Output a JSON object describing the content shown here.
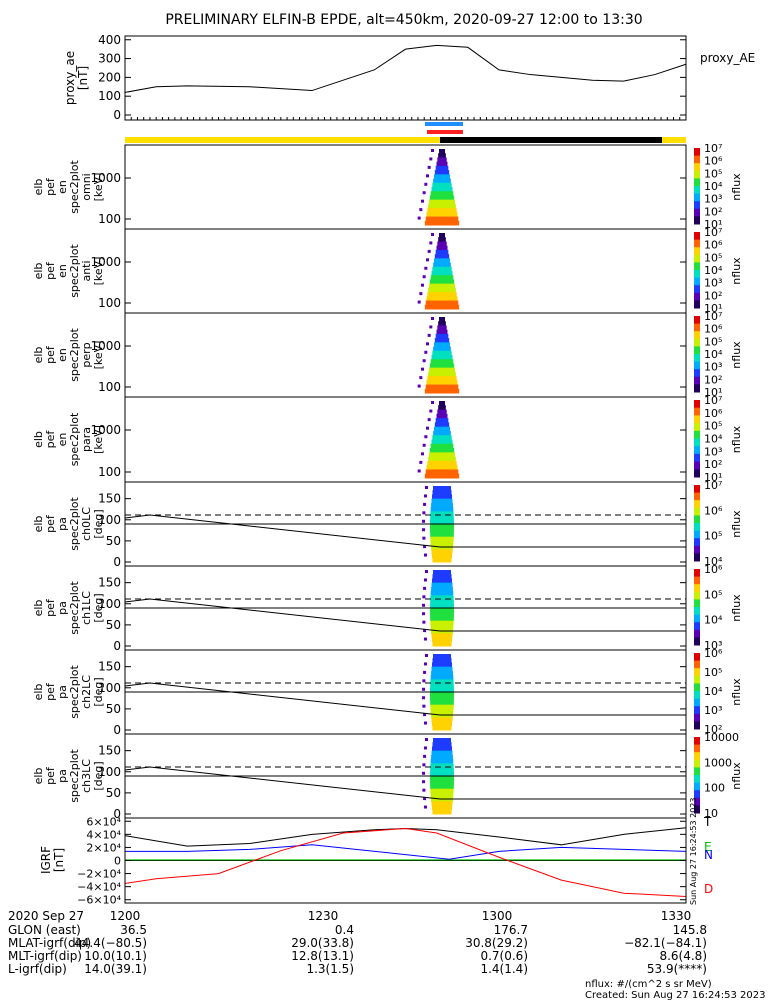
{
  "title": "PRELIMINARY ELFIN-B EPDE, alt=450km, 2020-09-27 12:00 to 13:30",
  "chart_data": [
    {
      "type": "line",
      "name": "proxy_ae",
      "ylabel_lines": [
        "proxy_ae",
        "[nT]"
      ],
      "legend": "proxy_AE",
      "ylim": [
        0,
        420
      ],
      "yticks": [
        "0",
        "100",
        "200",
        "300",
        "400"
      ],
      "x": [
        0,
        5,
        10,
        20,
        30,
        40,
        45,
        50,
        55,
        60,
        65,
        70,
        75,
        80,
        85,
        90
      ],
      "values": [
        120,
        150,
        155,
        150,
        130,
        240,
        350,
        370,
        360,
        240,
        215,
        200,
        185,
        180,
        215,
        270
      ]
    },
    {
      "type": "heatmap",
      "name": "elb_pef_en_spec2plot_omni",
      "ylabel_lines": [
        "elb",
        "pef",
        "en",
        "spec2plot",
        "omni",
        "[keV]"
      ],
      "yticks": [
        "100",
        "1000"
      ],
      "cbar_label": "nflux",
      "cbar_ticks": [
        "10¹",
        "10²",
        "10³",
        "10⁴",
        "10⁵",
        "10⁶",
        "10⁷"
      ]
    },
    {
      "type": "heatmap",
      "name": "elb_pef_en_spec2plot_anti",
      "ylabel_lines": [
        "elb",
        "pef",
        "en",
        "spec2plot",
        "anti",
        "[keV]"
      ],
      "yticks": [
        "100",
        "1000"
      ],
      "cbar_label": "nflux",
      "cbar_ticks": [
        "10¹",
        "10²",
        "10³",
        "10⁴",
        "10⁵",
        "10⁶",
        "10⁷"
      ]
    },
    {
      "type": "heatmap",
      "name": "elb_pef_en_spec2plot_perp",
      "ylabel_lines": [
        "elb",
        "pef",
        "en",
        "spec2plot",
        "perp",
        "[keV]"
      ],
      "yticks": [
        "100",
        "1000"
      ],
      "cbar_label": "nflux",
      "cbar_ticks": [
        "10¹",
        "10²",
        "10³",
        "10⁴",
        "10⁵",
        "10⁶",
        "10⁷"
      ]
    },
    {
      "type": "heatmap",
      "name": "elb_pef_en_spec2plot_para",
      "ylabel_lines": [
        "elb",
        "pef",
        "en",
        "spec2plot",
        "para",
        "[keV]"
      ],
      "yticks": [
        "100",
        "1000"
      ],
      "cbar_label": "nflux",
      "cbar_ticks": [
        "10¹",
        "10²",
        "10³",
        "10⁴",
        "10⁵",
        "10⁶",
        "10⁷"
      ]
    },
    {
      "type": "heatmap",
      "name": "elb_pef_pa_spec2plot_ch0LC",
      "ylabel_lines": [
        "elb",
        "pef",
        "pa",
        "spec2plot",
        "ch0LC",
        "[deg]"
      ],
      "yticks": [
        "0",
        "50",
        "100",
        "150"
      ],
      "cbar_label": "nflux",
      "cbar_ticks": [
        "10⁴",
        "10⁵",
        "10⁶",
        "10⁷"
      ]
    },
    {
      "type": "heatmap",
      "name": "elb_pef_pa_spec2plot_ch1LC",
      "ylabel_lines": [
        "elb",
        "pef",
        "pa",
        "spec2plot",
        "ch1LC",
        "[deg]"
      ],
      "yticks": [
        "0",
        "50",
        "100",
        "150"
      ],
      "cbar_label": "nflux",
      "cbar_ticks": [
        "10³",
        "10⁴",
        "10⁵",
        "10⁶"
      ]
    },
    {
      "type": "heatmap",
      "name": "elb_pef_pa_spec2plot_ch2LC",
      "ylabel_lines": [
        "elb",
        "pef",
        "pa",
        "spec2plot",
        "ch2LC",
        "[deg]"
      ],
      "yticks": [
        "0",
        "50",
        "100",
        "150"
      ],
      "cbar_label": "nflux",
      "cbar_ticks": [
        "10²",
        "10³",
        "10⁴",
        "10⁵",
        "10⁶"
      ]
    },
    {
      "type": "heatmap",
      "name": "elb_pef_pa_spec2plot_ch3LC",
      "ylabel_lines": [
        "elb",
        "pef",
        "pa",
        "spec2plot",
        "ch3LC",
        "[deg]"
      ],
      "yticks": [
        "0",
        "50",
        "100",
        "150"
      ],
      "cbar_label": "nflux",
      "cbar_ticks": [
        "10",
        "100",
        "1000",
        "10000"
      ]
    },
    {
      "type": "line",
      "name": "IGRF",
      "ylabel_lines": [
        "IGRF",
        "[nT]"
      ],
      "ylim": [
        -65000,
        65000
      ],
      "yticks": [
        "−6×10⁴",
        "−4×10⁴",
        "−2×10⁴",
        "0",
        "2×10⁴",
        "4×10⁴",
        "6×10⁴"
      ],
      "series": [
        {
          "name": "T",
          "color": "#000000",
          "x": [
            0,
            10,
            20,
            30,
            40,
            45,
            50,
            60,
            70,
            80,
            90
          ],
          "values": [
            38000,
            22000,
            26000,
            40000,
            47000,
            49000,
            47000,
            36000,
            24000,
            40000,
            50000
          ]
        },
        {
          "name": "E",
          "color": "#00c000",
          "x": [
            0,
            90
          ],
          "values": [
            1000,
            1000
          ]
        },
        {
          "name": "N",
          "color": "#0000ff",
          "x": [
            0,
            10,
            20,
            30,
            45,
            52,
            60,
            70,
            80,
            90
          ],
          "values": [
            14000,
            14000,
            17000,
            24000,
            9000,
            2000,
            14000,
            20000,
            17000,
            14000
          ]
        },
        {
          "name": "D",
          "color": "#ff0000",
          "x": [
            0,
            5,
            15,
            25,
            35,
            45,
            50,
            60,
            70,
            80,
            90
          ],
          "values": [
            -35000,
            -28000,
            -20000,
            15000,
            42000,
            49000,
            42000,
            5000,
            -30000,
            -50000,
            -55000
          ]
        }
      ]
    }
  ],
  "xaxis": {
    "tick_labels": [
      "1200",
      "1230",
      "1300",
      "1330"
    ],
    "row_labels": [
      "2020 Sep 27",
      "GLON (east)",
      "MLAT-igrf(dip)",
      "MLT-igrf(dip)",
      "L-igrf(dip)"
    ],
    "rows": [
      [
        "1200",
        "1230",
        "1300",
        "1330"
      ],
      [
        "36.5",
        "0.4",
        "176.7",
        "145.8"
      ],
      [
        "44.4(−80.5)",
        "29.0(33.8)",
        "30.8(29.2)",
        "−82.1(−84.1)"
      ],
      [
        "10.0(10.1)",
        "12.8(13.1)",
        "0.7(0.6)",
        "8.6(4.8)"
      ],
      [
        "14.0(39.1)",
        "1.3(1.5)",
        "1.4(1.4)",
        "53.9(****)"
      ]
    ]
  },
  "footnote": "nflux: #/(cm^2 s sr MeV)",
  "created": "Created: Sun Aug 27 16:24:53 2023",
  "side_stamp": "Sun Aug 27 16:24:53 2023",
  "status_colors": {
    "sunlit": "#ffe000",
    "eclipse": "#000000",
    "sci_blue": "#1f8fff",
    "sci_red": "#ff2020"
  }
}
